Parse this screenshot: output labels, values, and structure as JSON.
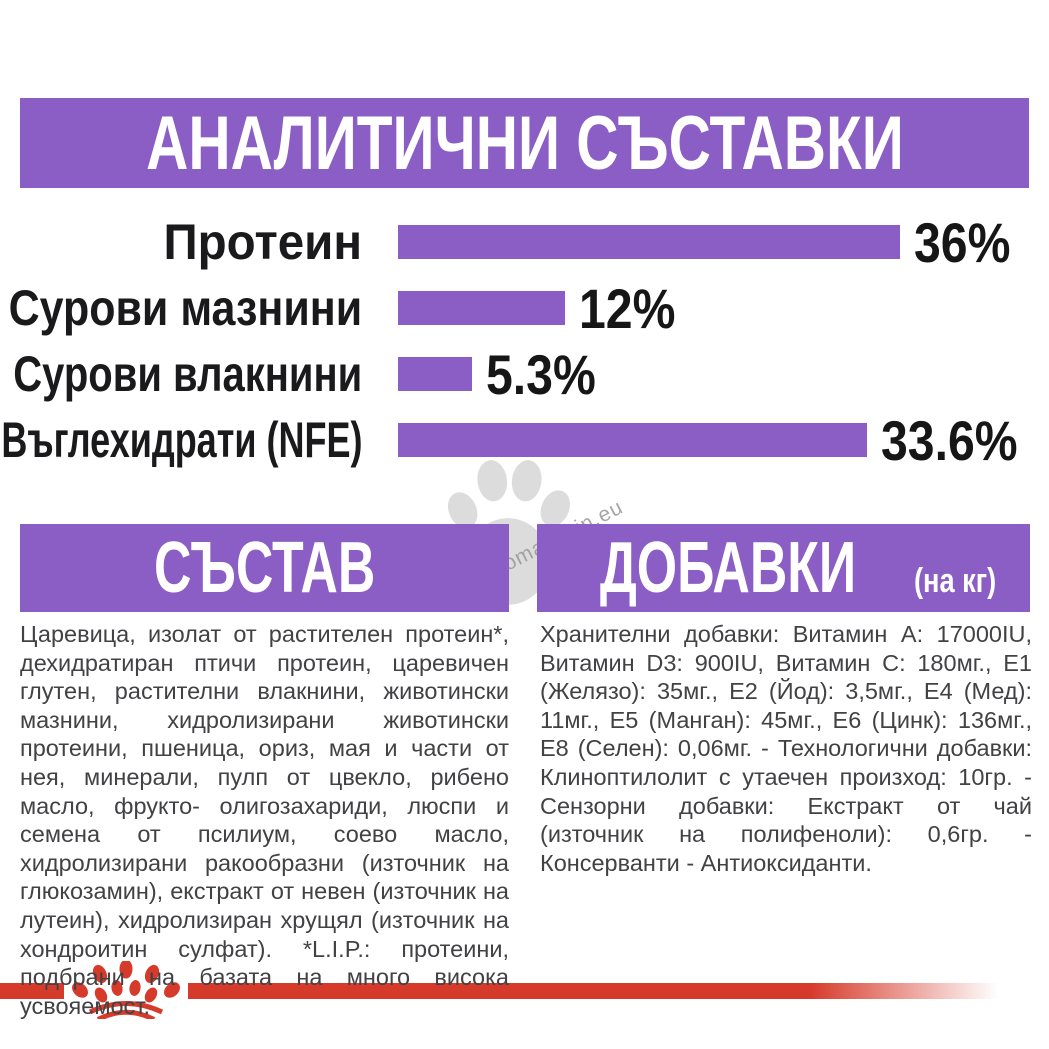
{
  "colors": {
    "purple": "#8A5EC4",
    "red": "#D63A2B",
    "watermark_gray": "#DCDCDC"
  },
  "header": {
    "title": "АНАЛИТИЧНИ СЪСТАВКИ"
  },
  "chart_data": {
    "type": "bar",
    "orientation": "horizontal",
    "title": "АНАЛИТИЧНИ СЪСТАВКИ",
    "categories": [
      "Протеин",
      "Сурови мазнини",
      "Сурови влакнини",
      "Въглехидрати (NFE)"
    ],
    "values": [
      36,
      12,
      5.3,
      33.6
    ],
    "value_labels": [
      "36%",
      "12%",
      "5.3%",
      "33.6%"
    ],
    "unit": "%",
    "xlim": [
      0,
      36
    ],
    "bar_color": "#8A5EC4",
    "grid": false,
    "legend": false
  },
  "composition": {
    "title": "СЪСТАВ",
    "body": "Царевица, изолат от растителен протеин*, дехидратиран птичи протеин, царевичен глутен, растителни влакнини, животински мазнини, хидролизирани животински протеини, пшеница, ориз, мая и части от нея, минерали, пулп от цвекло, рибено масло, фрукто- олигозахариди, люспи и семена от псилиум, соево масло, хидролизирани ракообразни (източник на глюкозамин), екстракт от невен (източник на лутеин), хидролизиран хрущял (източник на хондроитин сулфат). *L.I.P.: протеини, подбрани на базата на много висока усвояемост."
  },
  "additives": {
    "title": "ДОБАВКИ",
    "unit": "(на кг)",
    "body": "Хранителни добавки: Витамин A: 17000IU, Витамин D3: 900IU, Витамин C: 180мг., E1 (Желязо): 35мг., E2 (Йод): 3,5мг., E4 (Мед): 11мг., E5 (Манган): 45мг., E6 (Цинк): 136мг., E8 (Селен): 0,06мг. - Технологични добавки: Клиноптилолит с утаечен произход: 10гр. - Сензорни добавки: Екстракт от чай (източник на полифеноли): 0,6гр. - Консерванти - Антиоксиданти."
  },
  "watermark": {
    "text": "zoomagazin.eu",
    "icon": "paw-print"
  },
  "footer": {
    "brand_icon": "royal-canin-crown"
  }
}
